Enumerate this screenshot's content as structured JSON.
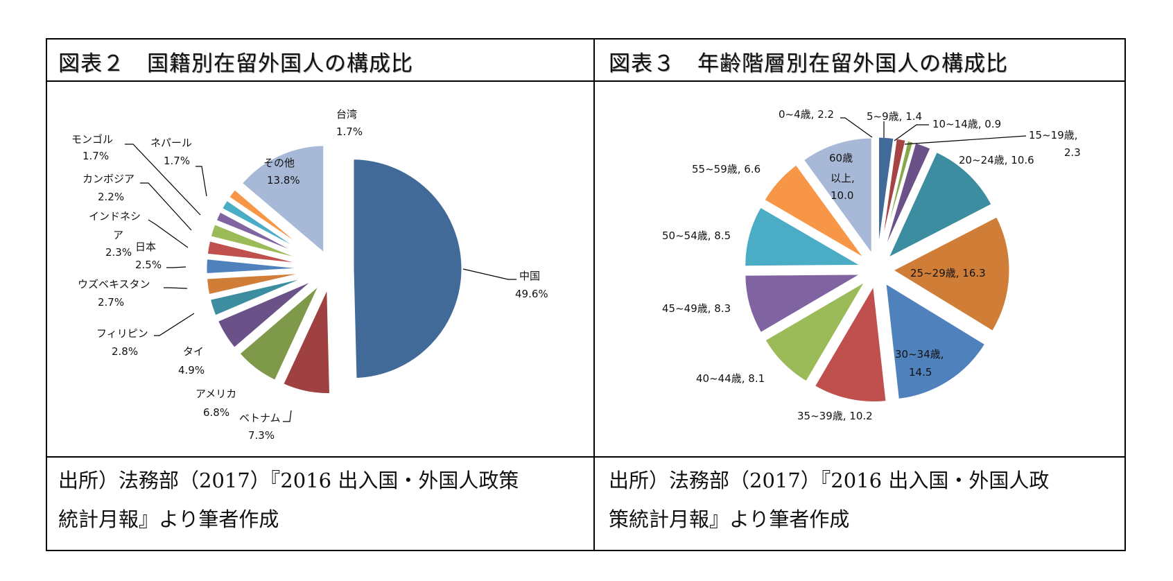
{
  "panels": [
    {
      "title": "図表２　国籍別在留外国人の構成比",
      "source_line1": "出所）法務部（2017）『2016 出入国・外国人政策",
      "source_line2": "統計月報』より筆者作成"
    },
    {
      "title": "図表３　年齢階層別在留外国人の構成比",
      "source_line1": "出所）法務部（2017）『2016 出入国・外国人政",
      "source_line2": "策統計月報』より筆者作成"
    }
  ],
  "chart_data": [
    {
      "type": "pie",
      "title": "図表２　国籍別在留外国人の構成比",
      "unit": "%",
      "start": "12 o'clock, clockwise",
      "exploded_first_slice": true,
      "slices": [
        {
          "label": "中国",
          "value": 49.6,
          "value_label": "49.6%",
          "color": "#416A99"
        },
        {
          "label": "ベトナム",
          "value": 7.3,
          "value_label": "7.3%",
          "color": "#9E4140"
        },
        {
          "label": "アメリカ",
          "value": 6.8,
          "value_label": "6.8%",
          "color": "#7F994A"
        },
        {
          "label": "タイ",
          "value": 4.9,
          "value_label": "4.9%",
          "color": "#6A5289"
        },
        {
          "label": "フィリピン",
          "value": 2.8,
          "value_label": "2.8%",
          "color": "#3C8DA0"
        },
        {
          "label": "ウズベキスタン",
          "value": 2.7,
          "value_label": "2.7%",
          "color": "#D07D37"
        },
        {
          "label": "日本",
          "value": 2.5,
          "value_label": "2.5%",
          "color": "#4F81BD"
        },
        {
          "label": "インドネシア",
          "value": 2.3,
          "value_label": "2.3%",
          "color": "#C0504D"
        },
        {
          "label": "カンボジア",
          "value": 2.2,
          "value_label": "2.2%",
          "color": "#9BBB59"
        },
        {
          "label": "モンゴル",
          "value": 1.7,
          "value_label": "1.7%",
          "color": "#8064A2"
        },
        {
          "label": "ネパール",
          "value": 1.7,
          "value_label": "1.7%",
          "color": "#4BACC6"
        },
        {
          "label": "台湾",
          "value": 1.7,
          "value_label": "1.7%",
          "color": "#F79646"
        },
        {
          "label": "その他",
          "value": 13.8,
          "value_label": "13.8%",
          "color": "#A8B9D8"
        }
      ]
    },
    {
      "type": "pie",
      "title": "図表３　年齢階層別在留外国人の構成比",
      "unit": "%",
      "start": "12 o'clock, clockwise",
      "exploded_all": true,
      "slices": [
        {
          "label": "0~4歳",
          "value": 2.2,
          "color": "#416A99"
        },
        {
          "label": "5~9歳",
          "value": 1.4,
          "color": "#A54442"
        },
        {
          "label": "10~14歳",
          "value": 0.9,
          "color": "#86A84A"
        },
        {
          "label": "15~19歳",
          "value": 2.3,
          "color": "#6A5289"
        },
        {
          "label": "20~24歳",
          "value": 10.6,
          "color": "#3C8DA0"
        },
        {
          "label": "25~29歳",
          "value": 16.3,
          "color": "#D07D37"
        },
        {
          "label": "30~34歳",
          "value": 14.5,
          "color": "#4F81BD"
        },
        {
          "label": "35~39歳",
          "value": 10.2,
          "color": "#C0504D"
        },
        {
          "label": "40~44歳",
          "value": 8.1,
          "color": "#9BBB59"
        },
        {
          "label": "45~49歳",
          "value": 8.3,
          "color": "#8064A2"
        },
        {
          "label": "50~54歳",
          "value": 8.5,
          "color": "#4BACC6"
        },
        {
          "label": "55~59歳",
          "value": 6.6,
          "color": "#F79646"
        },
        {
          "label": "60歳以上",
          "value": 10.0,
          "color": "#A8B9D8"
        }
      ],
      "data_labels": [
        "0~4歳, 2.2",
        "5~9歳, 1.4",
        "10~14歳, 0.9",
        "15~19歳,",
        "2.3",
        "20~24歳, 10.6",
        "25~29歳, 16.3",
        "30~34歳,",
        "14.5",
        "35~39歳, 10.2",
        "40~44歳, 8.1",
        "45~49歳, 8.3",
        "50~54歳, 8.5",
        "55~59歳, 6.6",
        "60歳",
        "以上,",
        "10.0"
      ]
    }
  ]
}
